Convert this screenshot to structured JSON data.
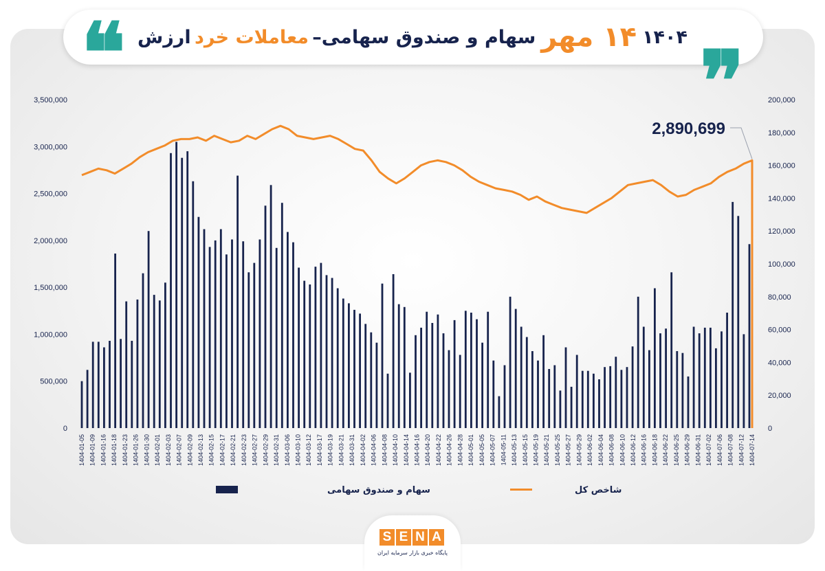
{
  "title": {
    "part1": "ارزش",
    "part2": "معاملات خرد",
    "part3": "سهام و صندوق سهامی–",
    "part4": "۱۴ مهر",
    "part5": "۱۴۰۴"
  },
  "quote_glyph": "❝",
  "colors": {
    "bars": "#17234d",
    "line": "#f28c2a",
    "accent": "#2aa79b"
  },
  "logo": {
    "letters": [
      "S",
      "E",
      "N",
      "A"
    ],
    "subtitle": "پایگاه خبری بازار سرمایه ایران"
  },
  "chart_data": {
    "type": "bar+line",
    "left_axis": {
      "min": 0,
      "max": 3500000,
      "tick_labels": [
        "0",
        "500,000",
        "1,000,000",
        "1,500,000",
        "2,000,000",
        "2,500,000",
        "3,000,000",
        "3,500,000"
      ]
    },
    "right_axis": {
      "min": 0,
      "max": 200000,
      "tick_labels": [
        "0",
        "20,000",
        "40,000",
        "60,000",
        "80,000",
        "100,000",
        "120,000",
        "140,000",
        "160,000",
        "180,000",
        "200,000"
      ]
    },
    "annotation": "2,890,699",
    "legend": [
      {
        "label": "سهام و صندوق سهامی",
        "kind": "bar"
      },
      {
        "label": "شاخص کل",
        "kind": "line"
      }
    ],
    "x_labels": [
      "1404-01-05",
      "1404-01-09",
      "1404-01-16",
      "1404-01-18",
      "1404-01-23",
      "1404-01-26",
      "1404-01-30",
      "1404-02-01",
      "1404-02-03",
      "1404-02-07",
      "1404-02-09",
      "1404-02-13",
      "1404-02-15",
      "1404-02-17",
      "1404-02-21",
      "1404-02-23",
      "1404-02-27",
      "1404-02-29",
      "1404-02-31",
      "1404-03-06",
      "1404-03-10",
      "1404-03-12",
      "1404-03-17",
      "1404-03-19",
      "1404-03-21",
      "1404-03-31",
      "1404-04-02",
      "1404-04-06",
      "1404-04-08",
      "1404-04-10",
      "1404-04-14",
      "1404-04-16",
      "1404-04-20",
      "1404-04-22",
      "1404-04-26",
      "1404-04-28",
      "1404-05-01",
      "1404-05-05",
      "1404-05-07",
      "1404-05-11",
      "1404-05-13",
      "1404-05-15",
      "1404-05-19",
      "1404-05-21",
      "1404-05-25",
      "1404-05-27",
      "1404-05-29",
      "1404-06-02",
      "1404-06-04",
      "1404-06-08",
      "1404-06-10",
      "1404-06-12",
      "1404-06-16",
      "1404-06-18",
      "1404-06-22",
      "1404-06-25",
      "1404-06-29",
      "1404-06-31",
      "1404-07-02",
      "1404-07-06",
      "1404-07-08",
      "1404-07-12",
      "1404-07-14"
    ],
    "series": [
      {
        "name": "سهام و صندوق سهامی",
        "type": "bar",
        "values": [
          500000,
          620000,
          920000,
          920000,
          860000,
          930000,
          1860000,
          950000,
          1350000,
          930000,
          1370000,
          1650000,
          2100000,
          1420000,
          1360000,
          1550000,
          2930000,
          3050000,
          2880000,
          2950000,
          2630000,
          2250000,
          2120000,
          1930000,
          2000000,
          2120000,
          1850000,
          2010000,
          2690000,
          1990000,
          1660000,
          1760000,
          2010000,
          2370000,
          2590000,
          1920000,
          2400000,
          2090000,
          1980000,
          1710000,
          1570000,
          1530000,
          1720000,
          1760000,
          1630000,
          1600000,
          1490000,
          1380000,
          1330000,
          1260000,
          1220000,
          1110000,
          1020000,
          910000,
          1540000,
          580000,
          1640000,
          1320000,
          1290000,
          590000,
          990000,
          1070000,
          1240000,
          1120000,
          1210000,
          1010000,
          830000,
          1150000,
          780000,
          1250000,
          1230000,
          1160000,
          910000,
          1240000,
          720000,
          340000,
          670000,
          1400000,
          1270000,
          1080000,
          970000,
          820000,
          720000,
          990000,
          630000,
          670000,
          400000,
          860000,
          440000,
          780000,
          610000,
          610000,
          580000,
          520000,
          650000,
          660000,
          760000,
          620000,
          650000,
          870000,
          1400000,
          1080000,
          830000,
          1490000,
          1010000,
          1060000,
          1660000,
          820000,
          800000,
          550000,
          1080000,
          1010000,
          1070000,
          1070000,
          850000,
          1030000,
          1230000,
          2410000,
          2260000,
          1000000,
          1960000
        ]
      },
      {
        "name": "شاخص کل",
        "type": "line",
        "values": [
          154000,
          156000,
          158000,
          157000,
          155000,
          158000,
          161000,
          165000,
          168000,
          170000,
          172000,
          175000,
          176000,
          176000,
          177000,
          175000,
          178000,
          176000,
          174000,
          175000,
          178000,
          176000,
          179000,
          182000,
          184000,
          182000,
          178000,
          177000,
          176000,
          177000,
          178000,
          176000,
          173000,
          170000,
          169000,
          163000,
          156000,
          152000,
          149000,
          152000,
          156000,
          160000,
          162000,
          163000,
          162000,
          160000,
          157000,
          153000,
          150000,
          148000,
          146000,
          145000,
          144000,
          142000,
          139000,
          141000,
          138000,
          136000,
          134000,
          133000,
          132000,
          131000,
          134000,
          137000,
          140000,
          144000,
          148000,
          149000,
          150000,
          151000,
          148000,
          144000,
          141000,
          142000,
          145000,
          147000,
          149000,
          153000,
          156000,
          158000,
          161000,
          163000
        ]
      }
    ]
  }
}
